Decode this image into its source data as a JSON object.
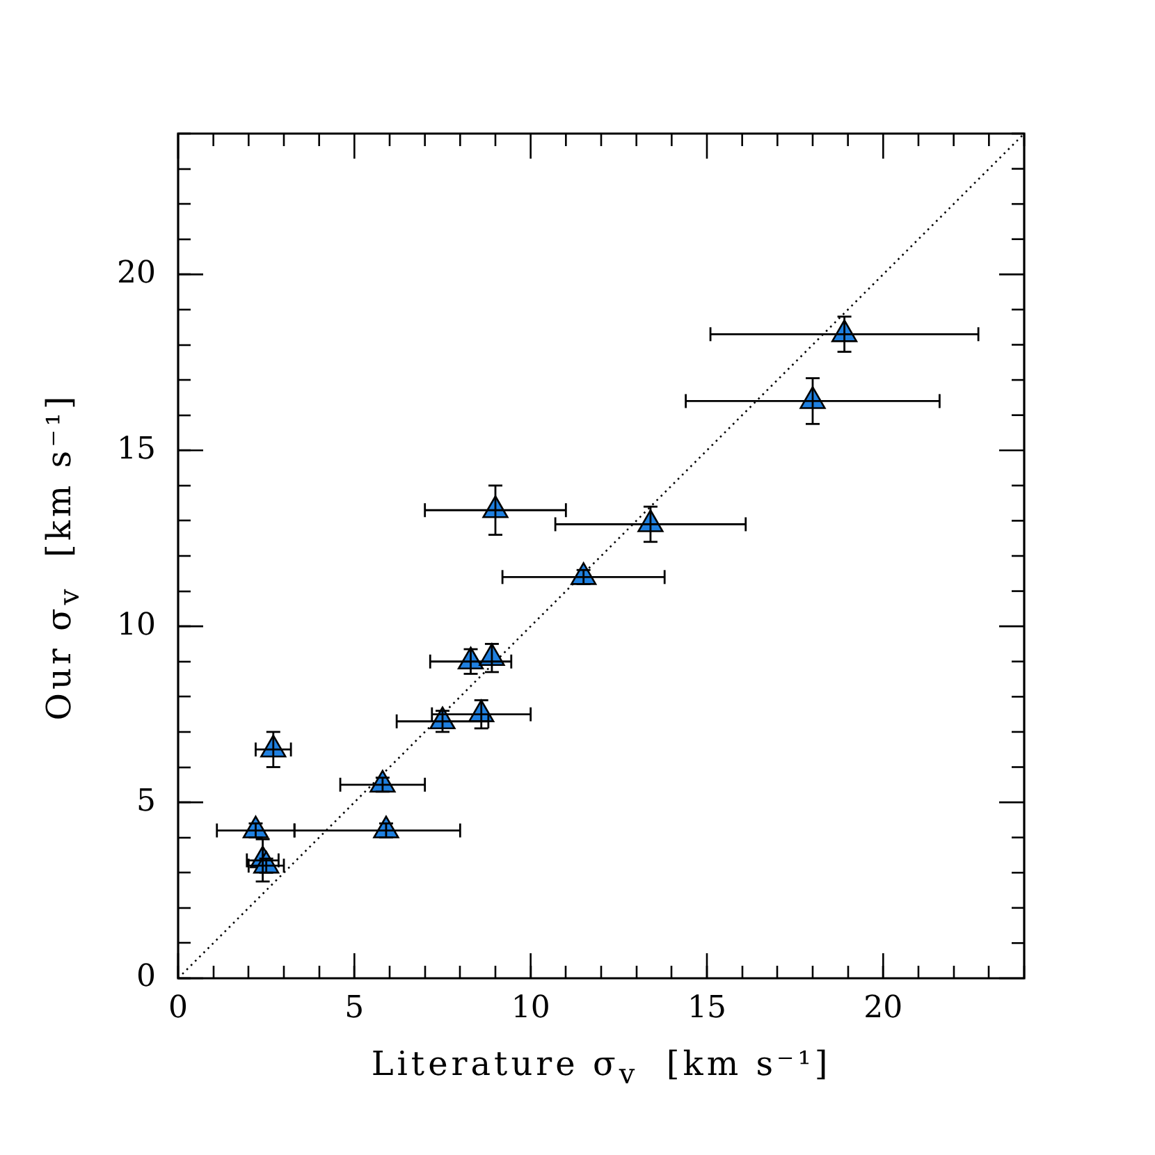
{
  "chart_data": {
    "type": "scatter",
    "xlabel": "Literature σ$_{v}$  [km s⁻¹]",
    "ylabel": "Our σ$_{v}$  [km s⁻¹]",
    "xlim": [
      0,
      24
    ],
    "ylim": [
      0,
      24
    ],
    "xticks": [
      0,
      {
        "value": 1,
        "label": null
      },
      {
        "value": 2,
        "label": null
      },
      {
        "value": 3,
        "label": null
      },
      {
        "value": 4,
        "label": null
      },
      5,
      {
        "value": 6,
        "label": null
      },
      {
        "value": 7,
        "label": null
      },
      {
        "value": 8,
        "label": null
      },
      {
        "value": 9,
        "label": null
      },
      10,
      {
        "value": 11,
        "label": null
      },
      {
        "value": 12,
        "label": null
      },
      {
        "value": 13,
        "label": null
      },
      {
        "value": 14,
        "label": null
      },
      15,
      {
        "value": 16,
        "label": null
      },
      {
        "value": 17,
        "label": null
      },
      {
        "value": 18,
        "label": null
      },
      {
        "value": 19,
        "label": null
      },
      20,
      {
        "value": 21,
        "label": null
      },
      {
        "value": 22,
        "label": null
      },
      {
        "value": 23,
        "label": null
      },
      {
        "value": 24,
        "label": null
      }
    ],
    "yticks": [
      0,
      {
        "value": 1,
        "label": null
      },
      {
        "value": 2,
        "label": null
      },
      {
        "value": 3,
        "label": null
      },
      {
        "value": 4,
        "label": null
      },
      5,
      {
        "value": 6,
        "label": null
      },
      {
        "value": 7,
        "label": null
      },
      {
        "value": 8,
        "label": null
      },
      {
        "value": 9,
        "label": null
      },
      10,
      {
        "value": 11,
        "label": null
      },
      {
        "value": 12,
        "label": null
      },
      {
        "value": 13,
        "label": null
      },
      {
        "value": 14,
        "label": null
      },
      15,
      {
        "value": 16,
        "label": null
      },
      {
        "value": 17,
        "label": null
      },
      {
        "value": 18,
        "label": null
      },
      {
        "value": 19,
        "label": null
      },
      20,
      {
        "value": 21,
        "label": null
      },
      {
        "value": 22,
        "label": null
      },
      {
        "value": 23,
        "label": null
      },
      {
        "value": 24,
        "label": null
      }
    ],
    "grid": false,
    "legend": false,
    "marker": "triangle",
    "series": [
      {
        "color": "#1f80e0",
        "x": [
          2.2,
          2.4,
          2.5,
          2.7,
          5.8,
          5.9,
          7.5,
          8.3,
          8.6,
          8.9,
          9.0,
          11.5,
          13.4,
          18.0,
          18.9
        ],
        "values": [
          4.2,
          3.35,
          3.2,
          6.5,
          5.5,
          4.2,
          7.3,
          9.0,
          7.5,
          9.1,
          13.3,
          11.4,
          12.9,
          16.4,
          18.3
        ],
        "errors": [
          0.2,
          0.6,
          0.2,
          0.5,
          0.2,
          0.2,
          0.3,
          0.35,
          0.4,
          0.4,
          0.7,
          0.2,
          0.5,
          0.65,
          0.5
        ],
        "xerrors": [
          1.1,
          0.45,
          0.5,
          0.5,
          1.2,
          [
            3.3,
            8.0
          ],
          1.3,
          1.15,
          1.4,
          null,
          2.0,
          2.3,
          2.7,
          3.6,
          3.8
        ]
      },
      {
        "type": "line",
        "color": "#000000",
        "x": [
          0,
          24
        ],
        "values": [
          0,
          24
        ],
        "marker": "none",
        "line_style": "dotted"
      }
    ]
  }
}
